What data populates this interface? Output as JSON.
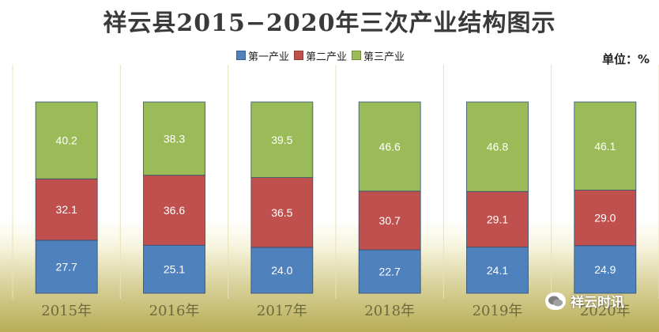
{
  "chart_data": {
    "type": "bar",
    "stacked": true,
    "title": "祥云县2015−2020年三次产业结构图示",
    "unit_label": "单位：%",
    "categories": [
      "2015年",
      "2016年",
      "2017年",
      "2018年",
      "2019年",
      "2020年"
    ],
    "series": [
      {
        "name": "第一产业",
        "color": "#4f81bd",
        "values": [
          27.7,
          25.1,
          24.0,
          22.7,
          24.1,
          24.9
        ]
      },
      {
        "name": "第二产业",
        "color": "#c0504d",
        "values": [
          32.1,
          36.6,
          36.5,
          30.7,
          29.1,
          29.0
        ]
      },
      {
        "name": "第三产业",
        "color": "#9bbb59",
        "values": [
          40.2,
          38.3,
          39.5,
          46.6,
          46.8,
          46.1
        ]
      }
    ],
    "ylim": [
      0,
      100
    ],
    "legend_position": "top-center",
    "grid": false
  },
  "watermark": {
    "text": "祥云时讯",
    "icon": "wechat-icon"
  }
}
